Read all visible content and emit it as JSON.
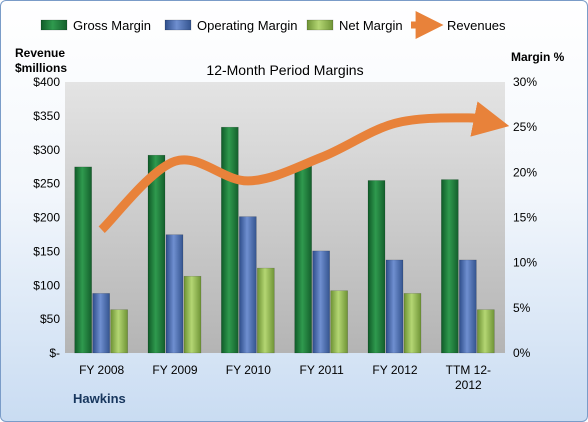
{
  "chart_data": {
    "type": "bar",
    "title": "12-Month Period Margins",
    "company": "Hawkins",
    "categories": [
      "FY 2008",
      "FY 2009",
      "FY 2010",
      "FY 2011",
      "FY 2012",
      "TTM 12-2012"
    ],
    "category_lines": [
      [
        "FY 2008"
      ],
      [
        "FY 2009"
      ],
      [
        "FY 2010"
      ],
      [
        "FY 2011"
      ],
      [
        "FY 2012"
      ],
      [
        "TTM 12-",
        "2012"
      ]
    ],
    "y_left": {
      "label_lines": [
        "Revenue",
        "$millions"
      ],
      "ylim": [
        0,
        400
      ],
      "ticks": [
        0,
        50,
        100,
        150,
        200,
        250,
        300,
        350,
        400
      ],
      "tick_labels": [
        "$-",
        "$50",
        "$100",
        "$150",
        "$200",
        "$250",
        "$300",
        "$350",
        "$400"
      ]
    },
    "y_right": {
      "label": "Margin %",
      "ylim": [
        0,
        30
      ],
      "ticks": [
        0,
        5,
        10,
        15,
        20,
        25,
        30
      ],
      "tick_labels": [
        "0%",
        "5%",
        "10%",
        "15%",
        "20%",
        "25%",
        "30%"
      ]
    },
    "series": [
      {
        "name": "Gross Margin",
        "axis": "right",
        "kind": "bar",
        "color": "#1e7a3c",
        "values": [
          20.6,
          21.9,
          25.0,
          20.7,
          19.1,
          19.2
        ]
      },
      {
        "name": "Operating Margin",
        "axis": "right",
        "kind": "bar",
        "color": "#3f63a8",
        "values": [
          6.6,
          13.1,
          15.1,
          11.3,
          10.3,
          10.3
        ]
      },
      {
        "name": "Net Margin",
        "axis": "right",
        "kind": "bar",
        "color": "#8db84a",
        "values": [
          4.8,
          8.5,
          9.4,
          6.9,
          6.6,
          4.8
        ]
      },
      {
        "name": "Revenues",
        "axis": "left",
        "kind": "line",
        "color": "#e8823a",
        "values": [
          182,
          283,
          254,
          289,
          339,
          347
        ]
      }
    ],
    "grid": false,
    "legend": "top"
  }
}
